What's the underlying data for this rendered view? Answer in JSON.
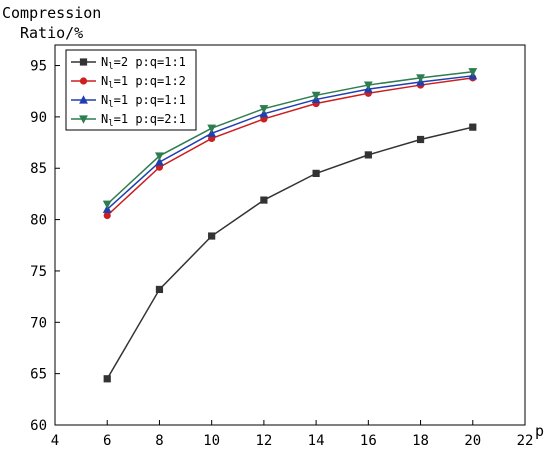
{
  "chart_data": {
    "type": "line",
    "title": "",
    "ylabel_line1": "Compression",
    "ylabel_line2": "Ratio/%",
    "xlabel": "p",
    "xlim": [
      4,
      22
    ],
    "ylim": [
      60,
      97
    ],
    "xticks": [
      4,
      6,
      8,
      10,
      12,
      14,
      16,
      18,
      20,
      22
    ],
    "yticks": [
      60,
      65,
      70,
      75,
      80,
      85,
      90,
      95
    ],
    "x": [
      6,
      8,
      10,
      12,
      14,
      16,
      18,
      20
    ],
    "grid": false,
    "legend_position": "top-left",
    "series": [
      {
        "label_main": "N",
        "label_sub": "l",
        "label_rest": "=2 p:q=1:1",
        "color": "#333333",
        "marker": "square",
        "values": [
          64.5,
          73.2,
          78.4,
          81.9,
          84.5,
          86.3,
          87.8,
          89.0
        ]
      },
      {
        "label_main": "N",
        "label_sub": "l",
        "label_rest": "=1 p:q=1:2",
        "color": "#cc1f1f",
        "marker": "circle",
        "values": [
          80.4,
          85.1,
          87.9,
          89.8,
          91.3,
          92.3,
          93.1,
          93.8
        ]
      },
      {
        "label_main": "N",
        "label_sub": "l",
        "label_rest": "=1 p:q=1:1",
        "color": "#1f3fb0",
        "marker": "triangle-up",
        "values": [
          81.0,
          85.6,
          88.4,
          90.3,
          91.7,
          92.7,
          93.4,
          94.0
        ]
      },
      {
        "label_main": "N",
        "label_sub": "l",
        "label_rest": "=1 p:q=2:1",
        "color": "#2e7d4f",
        "marker": "triangle-down",
        "values": [
          81.5,
          86.2,
          88.9,
          90.8,
          92.1,
          93.1,
          93.8,
          94.4
        ]
      }
    ]
  }
}
